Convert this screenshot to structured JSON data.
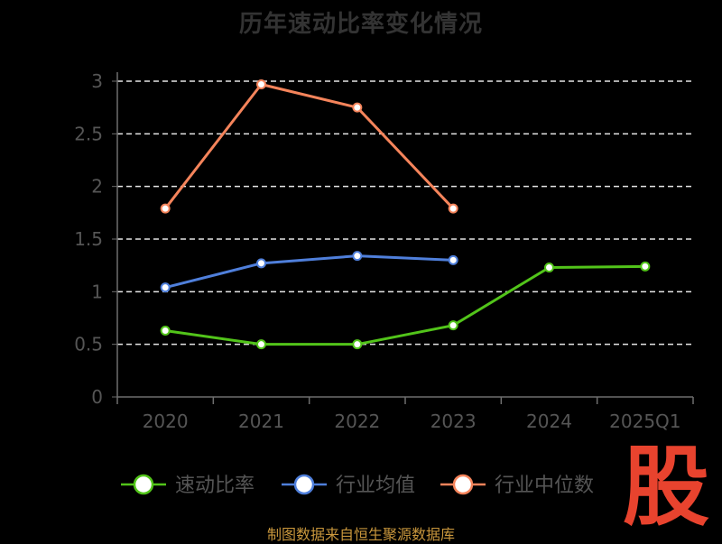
{
  "chart_data": {
    "type": "line",
    "title": "历年速动比率变化情况",
    "categories": [
      "2020",
      "2021",
      "2022",
      "2023",
      "2024",
      "2025Q1"
    ],
    "ylim": [
      0,
      3
    ],
    "yticks": [
      "0",
      "0.5",
      "1",
      "1.5",
      "2",
      "2.5",
      "3"
    ],
    "grid": true,
    "legend_position": "bottom",
    "series": [
      {
        "name": "速动比率",
        "color": "#52c41a",
        "values": [
          0.63,
          0.5,
          0.5,
          0.68,
          1.23,
          1.24
        ]
      },
      {
        "name": "行业均值",
        "color": "#4f7fdb",
        "values": [
          1.04,
          1.27,
          1.34,
          1.3,
          null,
          null
        ]
      },
      {
        "name": "行业中位数",
        "color": "#f5845b",
        "values": [
          1.79,
          2.97,
          2.75,
          1.79,
          null,
          null
        ]
      }
    ]
  },
  "watermark": "股",
  "source": "制图数据来自恒生聚源数据库"
}
